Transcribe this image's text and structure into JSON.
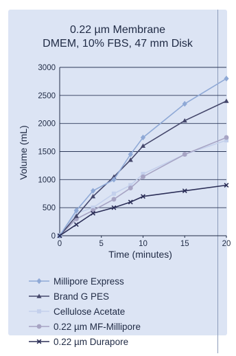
{
  "chart_data": {
    "type": "line",
    "title": "0.22 µm Membrane",
    "subtitle": "DMEM, 10% FBS, 47 mm Disk",
    "xlabel": "Time (minutes)",
    "ylabel": "Volume (mL)",
    "xlim": [
      0,
      20
    ],
    "ylim": [
      0,
      3000
    ],
    "xticks": [
      0,
      5,
      10,
      15,
      20
    ],
    "yticks": [
      0,
      500,
      1000,
      1500,
      2000,
      2500,
      3000
    ],
    "grid": "horizontal",
    "legend_position": "bottom",
    "series": [
      {
        "name": "Millipore Express",
        "color": "#8fa9d6",
        "marker": "diamond",
        "x": [
          0,
          2,
          4,
          6.5,
          8.5,
          10,
          15,
          20
        ],
        "y": [
          0,
          450,
          800,
          1000,
          1450,
          1750,
          2350,
          2800
        ]
      },
      {
        "name": "Brand G PES",
        "color": "#45476b",
        "marker": "triangle",
        "x": [
          0,
          2,
          4,
          6.5,
          8.5,
          10,
          15,
          20
        ],
        "y": [
          0,
          350,
          700,
          1050,
          1350,
          1600,
          2050,
          2400
        ]
      },
      {
        "name": "Cellulose Acetate",
        "color": "#c4d0ec",
        "marker": "square",
        "x": [
          0,
          2,
          4,
          6.5,
          8.5,
          10,
          15,
          20
        ],
        "y": [
          0,
          400,
          500,
          750,
          900,
          1100,
          1450,
          1700
        ]
      },
      {
        "name": "0.22 µm MF-Millipore",
        "color": "#a7a4c4",
        "marker": "circle",
        "x": [
          0,
          2,
          4,
          6.5,
          8.5,
          10,
          15,
          20
        ],
        "y": [
          0,
          300,
          450,
          650,
          850,
          1050,
          1450,
          1750
        ]
      },
      {
        "name": "0.22 µm Durapore",
        "color": "#2b2e57",
        "marker": "x",
        "x": [
          0,
          2,
          4,
          6.5,
          8.5,
          10,
          15,
          20
        ],
        "y": [
          0,
          200,
          400,
          500,
          600,
          700,
          800,
          900
        ]
      }
    ]
  }
}
